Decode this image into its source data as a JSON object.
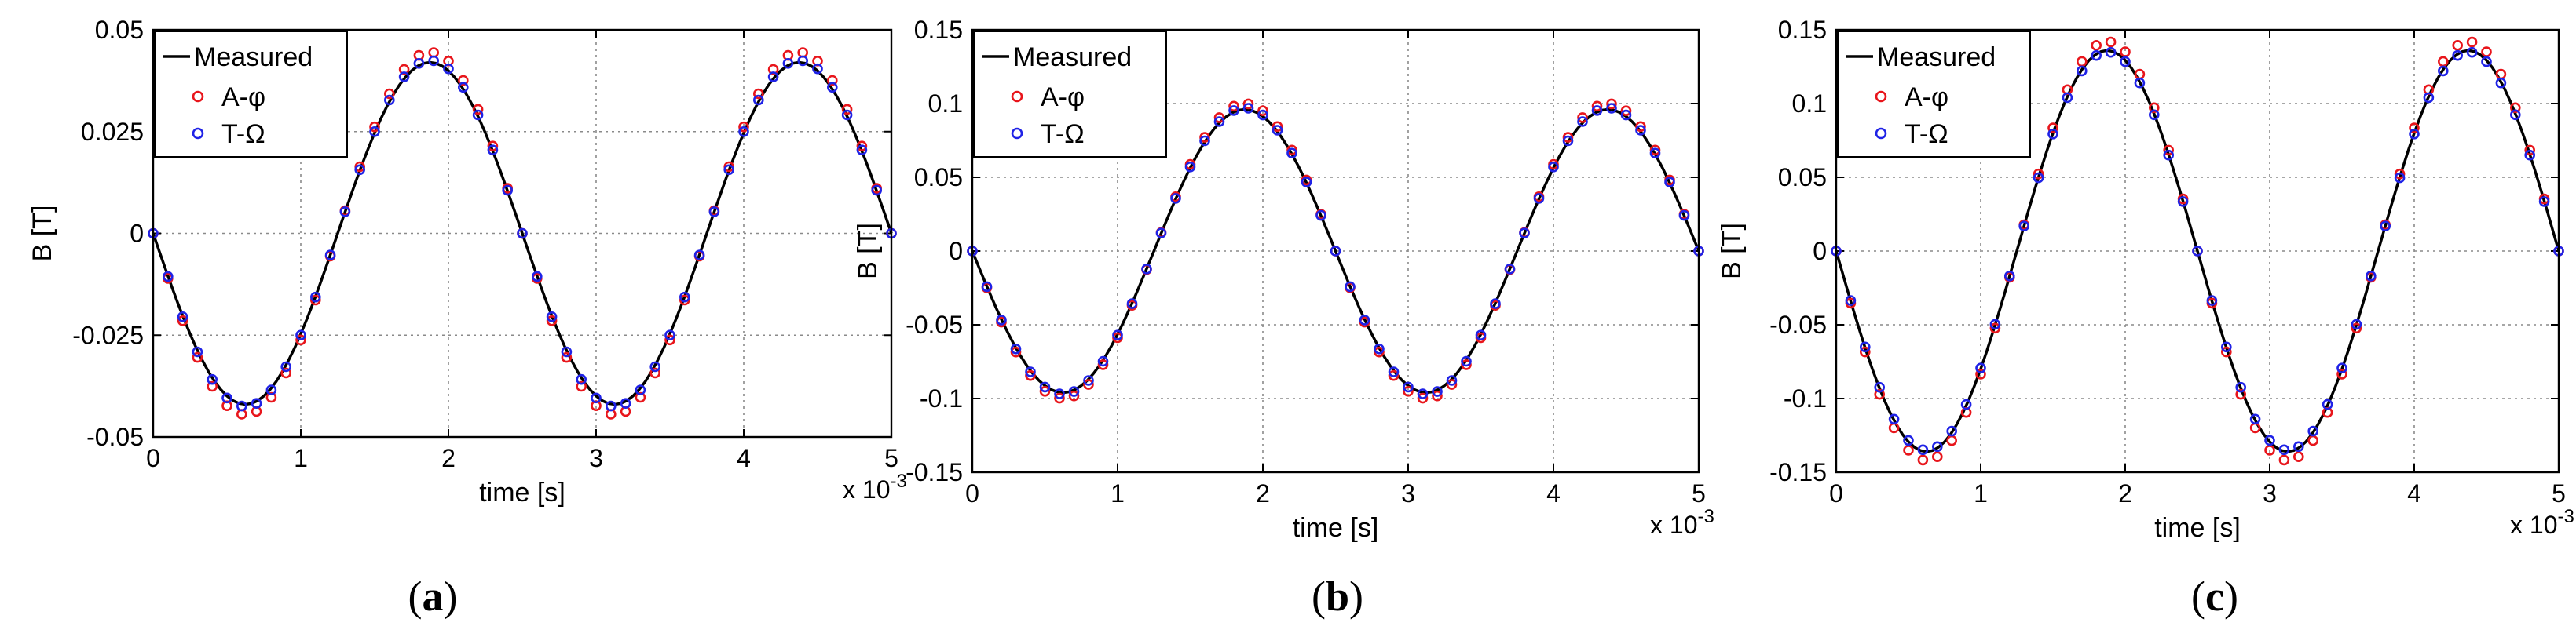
{
  "figure": {
    "background": "#ffffff",
    "colors": {
      "measured": "#000000",
      "a_phi": "#e8151b",
      "t_omega": "#1f22e6",
      "grid": "#8a8a8a"
    }
  },
  "chart_data": [
    {
      "type": "line",
      "panel_label": "a",
      "xlabel": "time [s]",
      "ylabel": "B [T]",
      "x_multiplier": "x 10",
      "x_exponent": "-3",
      "xlim": [
        0,
        5
      ],
      "ylim": [
        -0.05,
        0.05
      ],
      "xticks": [
        0,
        1,
        2,
        3,
        4,
        5
      ],
      "xtick_labels": [
        "0",
        "1",
        "2",
        "3",
        "4",
        "5"
      ],
      "yticks": [
        0.05,
        0.025,
        0,
        -0.025,
        -0.05
      ],
      "ytick_labels": [
        "0.05",
        "0.025",
        "0",
        "-0.025",
        "-0.05"
      ],
      "grid": true,
      "legend": {
        "position": "top-left",
        "entries": [
          "Measured",
          "A-φ",
          "T-Ω"
        ]
      },
      "series": [
        {
          "name": "Measured",
          "style": "line",
          "color": "#000000",
          "amplitude": 0.042,
          "period_ms": 2.5,
          "x_start": 0,
          "x_end": 5,
          "points": 121
        },
        {
          "name": "A-φ",
          "style": "circle",
          "color": "#e8151b",
          "amplitude": 0.0445,
          "period_ms": 2.5,
          "x_start": 0,
          "x_end": 5,
          "points": 51
        },
        {
          "name": "T-Ω",
          "style": "circle",
          "color": "#1f22e6",
          "amplitude": 0.0425,
          "period_ms": 2.5,
          "x_start": 0,
          "x_end": 5,
          "points": 51
        }
      ]
    },
    {
      "type": "line",
      "panel_label": "b",
      "xlabel": "time [s]",
      "ylabel": "B [T]",
      "x_multiplier": "x 10",
      "x_exponent": "-3",
      "xlim": [
        0,
        5
      ],
      "ylim": [
        -0.15,
        0.15
      ],
      "xticks": [
        0,
        1,
        2,
        3,
        4,
        5
      ],
      "xtick_labels": [
        "0",
        "1",
        "2",
        "3",
        "4",
        "5"
      ],
      "yticks": [
        0.15,
        0.1,
        0.05,
        0,
        -0.05,
        -0.1,
        -0.15
      ],
      "ytick_labels": [
        "0.15",
        "0.1",
        "0.05",
        "0",
        "-0.05",
        "-0.1",
        "-0.15"
      ],
      "grid": true,
      "legend": {
        "position": "top-left",
        "entries": [
          "Measured",
          "A-φ",
          "T-Ω"
        ]
      },
      "series": [
        {
          "name": "Measured",
          "style": "line",
          "color": "#000000",
          "amplitude": 0.096,
          "period_ms": 2.5,
          "x_start": 0,
          "x_end": 5,
          "points": 121
        },
        {
          "name": "A-φ",
          "style": "circle",
          "color": "#e8151b",
          "amplitude": 0.1,
          "period_ms": 2.5,
          "x_start": 0,
          "x_end": 5,
          "points": 51
        },
        {
          "name": "T-Ω",
          "style": "circle",
          "color": "#1f22e6",
          "amplitude": 0.097,
          "period_ms": 2.5,
          "x_start": 0,
          "x_end": 5,
          "points": 51
        }
      ]
    },
    {
      "type": "line",
      "panel_label": "c",
      "xlabel": "time [s]",
      "ylabel": "B [T]",
      "x_multiplier": "x 10",
      "x_exponent": "-3",
      "xlim": [
        0,
        5
      ],
      "ylim": [
        -0.15,
        0.15
      ],
      "xticks": [
        0,
        1,
        2,
        3,
        4,
        5
      ],
      "xtick_labels": [
        "0",
        "1",
        "2",
        "3",
        "4",
        "5"
      ],
      "yticks": [
        0.15,
        0.1,
        0.05,
        0,
        -0.05,
        -0.1,
        -0.15
      ],
      "ytick_labels": [
        "0.15",
        "0.1",
        "0.05",
        "0",
        "-0.05",
        "-0.1",
        "-0.15"
      ],
      "grid": true,
      "legend": {
        "position": "top-left",
        "entries": [
          "Measured",
          "A-φ",
          "T-Ω"
        ]
      },
      "series": [
        {
          "name": "Measured",
          "style": "line",
          "color": "#000000",
          "amplitude": 0.136,
          "period_ms": 2.5,
          "x_start": 0,
          "x_end": 5,
          "points": 121
        },
        {
          "name": "A-φ",
          "style": "circle",
          "color": "#e8151b",
          "amplitude": 0.142,
          "period_ms": 2.5,
          "x_start": 0,
          "x_end": 5,
          "points": 51
        },
        {
          "name": "T-Ω",
          "style": "circle",
          "color": "#1f22e6",
          "amplitude": 0.135,
          "period_ms": 2.5,
          "x_start": 0,
          "x_end": 5,
          "points": 51
        }
      ]
    }
  ]
}
